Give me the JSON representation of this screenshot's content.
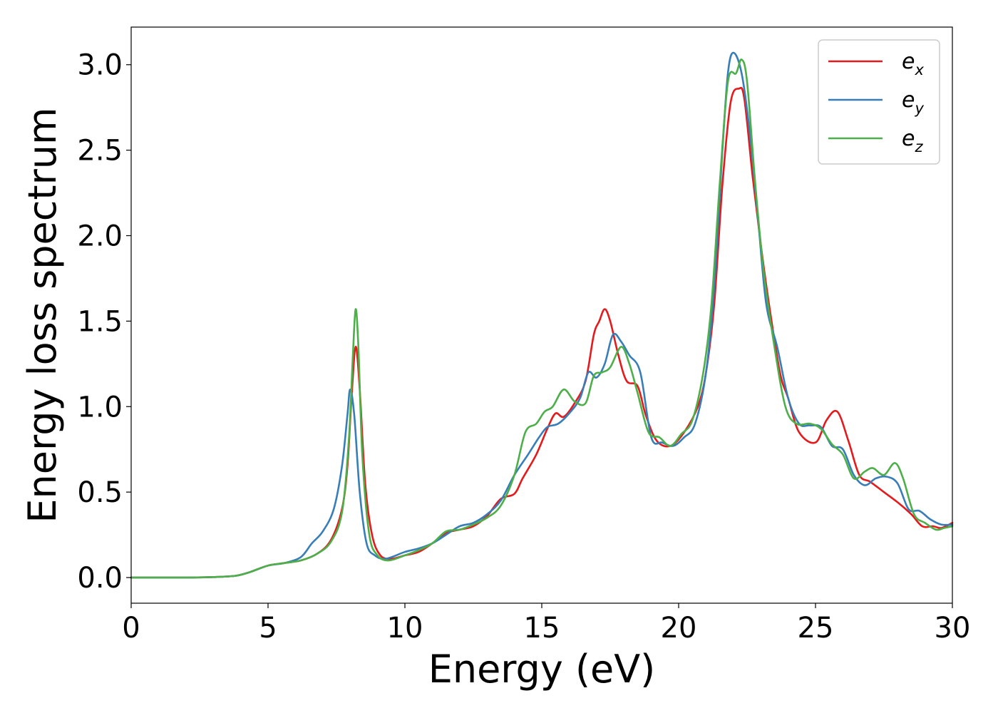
{
  "chart_data": {
    "type": "line",
    "title": "",
    "xlabel": "Energy (eV)",
    "ylabel": "Energy loss spectrum",
    "xlim": [
      0,
      30
    ],
    "ylim": [
      -0.15,
      3.22
    ],
    "xticks": [
      0,
      5,
      10,
      15,
      20,
      25,
      30
    ],
    "xtick_labels": [
      "0",
      "5",
      "10",
      "15",
      "20",
      "25",
      "30"
    ],
    "yticks": [
      0.0,
      0.5,
      1.0,
      1.5,
      2.0,
      2.5,
      3.0
    ],
    "ytick_labels": [
      "0.0",
      "0.5",
      "1.0",
      "1.5",
      "2.0",
      "2.5",
      "3.0"
    ],
    "grid": false,
    "legend_position": "top-right",
    "series": [
      {
        "name": "e_x",
        "label_base": "e",
        "label_sub": "x",
        "color": "#e41a1c",
        "points": [
          [
            0,
            0
          ],
          [
            1,
            0
          ],
          [
            2,
            0
          ],
          [
            3,
            0.003
          ],
          [
            3.8,
            0.01
          ],
          [
            4.3,
            0.03
          ],
          [
            5,
            0.07
          ],
          [
            5.6,
            0.085
          ],
          [
            6.2,
            0.1
          ],
          [
            6.8,
            0.14
          ],
          [
            7.3,
            0.22
          ],
          [
            7.7,
            0.4
          ],
          [
            7.9,
            0.65
          ],
          [
            8.05,
            1.05
          ],
          [
            8.2,
            1.35
          ],
          [
            8.35,
            1.1
          ],
          [
            8.55,
            0.55
          ],
          [
            8.8,
            0.25
          ],
          [
            9.1,
            0.13
          ],
          [
            9.5,
            0.11
          ],
          [
            10,
            0.13
          ],
          [
            10.5,
            0.15
          ],
          [
            11,
            0.2
          ],
          [
            11.5,
            0.26
          ],
          [
            12,
            0.28
          ],
          [
            12.5,
            0.3
          ],
          [
            13,
            0.36
          ],
          [
            13.5,
            0.46
          ],
          [
            14,
            0.49
          ],
          [
            14.3,
            0.58
          ],
          [
            14.8,
            0.72
          ],
          [
            15.2,
            0.87
          ],
          [
            15.5,
            0.96
          ],
          [
            15.8,
            0.94
          ],
          [
            16.2,
            1.02
          ],
          [
            16.6,
            1.15
          ],
          [
            16.9,
            1.42
          ],
          [
            17.1,
            1.5
          ],
          [
            17.3,
            1.57
          ],
          [
            17.5,
            1.5
          ],
          [
            17.8,
            1.3
          ],
          [
            18.1,
            1.15
          ],
          [
            18.5,
            1.12
          ],
          [
            18.8,
            0.95
          ],
          [
            19.2,
            0.8
          ],
          [
            19.7,
            0.77
          ],
          [
            20.2,
            0.85
          ],
          [
            20.7,
            1.0
          ],
          [
            21.0,
            1.2
          ],
          [
            21.3,
            1.6
          ],
          [
            21.6,
            2.3
          ],
          [
            21.9,
            2.78
          ],
          [
            22.2,
            2.86
          ],
          [
            22.4,
            2.8
          ],
          [
            22.7,
            2.35
          ],
          [
            23.0,
            1.95
          ],
          [
            23.3,
            1.6
          ],
          [
            23.7,
            1.2
          ],
          [
            24.0,
            1.05
          ],
          [
            24.4,
            0.85
          ],
          [
            25.0,
            0.79
          ],
          [
            25.4,
            0.92
          ],
          [
            25.8,
            0.97
          ],
          [
            26.2,
            0.8
          ],
          [
            26.6,
            0.6
          ],
          [
            27.0,
            0.56
          ],
          [
            27.5,
            0.5
          ],
          [
            28.0,
            0.44
          ],
          [
            28.5,
            0.37
          ],
          [
            28.9,
            0.3
          ],
          [
            29.3,
            0.3
          ],
          [
            29.6,
            0.29
          ],
          [
            30,
            0.32
          ]
        ]
      },
      {
        "name": "e_y",
        "label_base": "e",
        "label_sub": "y",
        "color": "#377eb8",
        "points": [
          [
            0,
            0
          ],
          [
            1,
            0
          ],
          [
            2,
            0
          ],
          [
            3,
            0.003
          ],
          [
            3.8,
            0.01
          ],
          [
            4.3,
            0.03
          ],
          [
            5,
            0.07
          ],
          [
            5.6,
            0.085
          ],
          [
            6.2,
            0.12
          ],
          [
            6.6,
            0.2
          ],
          [
            7.0,
            0.27
          ],
          [
            7.4,
            0.4
          ],
          [
            7.7,
            0.65
          ],
          [
            7.9,
            0.95
          ],
          [
            8.0,
            1.1
          ],
          [
            8.15,
            0.95
          ],
          [
            8.35,
            0.5
          ],
          [
            8.6,
            0.2
          ],
          [
            8.9,
            0.13
          ],
          [
            9.3,
            0.11
          ],
          [
            10,
            0.15
          ],
          [
            10.5,
            0.17
          ],
          [
            11,
            0.2
          ],
          [
            11.5,
            0.25
          ],
          [
            12,
            0.3
          ],
          [
            12.5,
            0.32
          ],
          [
            13,
            0.37
          ],
          [
            13.5,
            0.45
          ],
          [
            14,
            0.6
          ],
          [
            14.5,
            0.72
          ],
          [
            14.9,
            0.82
          ],
          [
            15.2,
            0.88
          ],
          [
            15.6,
            0.9
          ],
          [
            16.0,
            0.96
          ],
          [
            16.4,
            1.05
          ],
          [
            16.7,
            1.2
          ],
          [
            17.0,
            1.17
          ],
          [
            17.3,
            1.25
          ],
          [
            17.6,
            1.42
          ],
          [
            17.9,
            1.38
          ],
          [
            18.2,
            1.3
          ],
          [
            18.6,
            1.2
          ],
          [
            19.0,
            0.82
          ],
          [
            19.4,
            0.79
          ],
          [
            19.8,
            0.77
          ],
          [
            20.2,
            0.82
          ],
          [
            20.6,
            0.9
          ],
          [
            21.0,
            1.2
          ],
          [
            21.3,
            1.7
          ],
          [
            21.6,
            2.5
          ],
          [
            21.8,
            2.95
          ],
          [
            22.0,
            3.07
          ],
          [
            22.3,
            2.95
          ],
          [
            22.6,
            2.6
          ],
          [
            22.9,
            2.1
          ],
          [
            23.2,
            1.6
          ],
          [
            23.6,
            1.35
          ],
          [
            24.0,
            1.05
          ],
          [
            24.4,
            0.9
          ],
          [
            24.8,
            0.89
          ],
          [
            25.2,
            0.88
          ],
          [
            25.6,
            0.77
          ],
          [
            26.0,
            0.75
          ],
          [
            26.4,
            0.6
          ],
          [
            26.8,
            0.54
          ],
          [
            27.2,
            0.58
          ],
          [
            27.6,
            0.59
          ],
          [
            28.0,
            0.55
          ],
          [
            28.4,
            0.4
          ],
          [
            28.8,
            0.39
          ],
          [
            29.2,
            0.34
          ],
          [
            29.6,
            0.31
          ],
          [
            30,
            0.31
          ]
        ]
      },
      {
        "name": "e_z",
        "label_base": "e",
        "label_sub": "z",
        "color": "#4daf4a",
        "points": [
          [
            0,
            0
          ],
          [
            1,
            0
          ],
          [
            2,
            0
          ],
          [
            3,
            0.003
          ],
          [
            3.8,
            0.01
          ],
          [
            4.3,
            0.03
          ],
          [
            5,
            0.07
          ],
          [
            5.6,
            0.085
          ],
          [
            6.2,
            0.1
          ],
          [
            6.8,
            0.14
          ],
          [
            7.3,
            0.21
          ],
          [
            7.7,
            0.38
          ],
          [
            7.95,
            0.8
          ],
          [
            8.1,
            1.3
          ],
          [
            8.2,
            1.57
          ],
          [
            8.3,
            1.35
          ],
          [
            8.45,
            0.7
          ],
          [
            8.7,
            0.25
          ],
          [
            9.0,
            0.13
          ],
          [
            9.4,
            0.1
          ],
          [
            10,
            0.13
          ],
          [
            10.5,
            0.16
          ],
          [
            11,
            0.2
          ],
          [
            11.5,
            0.27
          ],
          [
            12,
            0.28
          ],
          [
            12.5,
            0.31
          ],
          [
            13,
            0.35
          ],
          [
            13.5,
            0.42
          ],
          [
            14,
            0.6
          ],
          [
            14.4,
            0.85
          ],
          [
            14.8,
            0.9
          ],
          [
            15.1,
            0.97
          ],
          [
            15.4,
            1.0
          ],
          [
            15.8,
            1.1
          ],
          [
            16.2,
            1.03
          ],
          [
            16.6,
            1.02
          ],
          [
            16.9,
            1.18
          ],
          [
            17.2,
            1.2
          ],
          [
            17.5,
            1.23
          ],
          [
            17.9,
            1.35
          ],
          [
            18.2,
            1.25
          ],
          [
            18.5,
            1.08
          ],
          [
            18.9,
            0.85
          ],
          [
            19.3,
            0.82
          ],
          [
            19.7,
            0.77
          ],
          [
            20.1,
            0.84
          ],
          [
            20.5,
            0.92
          ],
          [
            20.9,
            1.2
          ],
          [
            21.2,
            1.6
          ],
          [
            21.5,
            2.3
          ],
          [
            21.8,
            2.9
          ],
          [
            22.1,
            2.95
          ],
          [
            22.3,
            3.03
          ],
          [
            22.5,
            2.9
          ],
          [
            22.8,
            2.3
          ],
          [
            23.1,
            1.8
          ],
          [
            23.5,
            1.35
          ],
          [
            23.9,
            1.0
          ],
          [
            24.3,
            0.9
          ],
          [
            24.8,
            0.9
          ],
          [
            25.2,
            0.87
          ],
          [
            25.6,
            0.78
          ],
          [
            26.0,
            0.72
          ],
          [
            26.4,
            0.58
          ],
          [
            26.8,
            0.62
          ],
          [
            27.1,
            0.64
          ],
          [
            27.5,
            0.6
          ],
          [
            27.9,
            0.67
          ],
          [
            28.2,
            0.58
          ],
          [
            28.6,
            0.37
          ],
          [
            29.0,
            0.32
          ],
          [
            29.4,
            0.28
          ],
          [
            29.7,
            0.29
          ],
          [
            30,
            0.3
          ]
        ]
      }
    ]
  }
}
